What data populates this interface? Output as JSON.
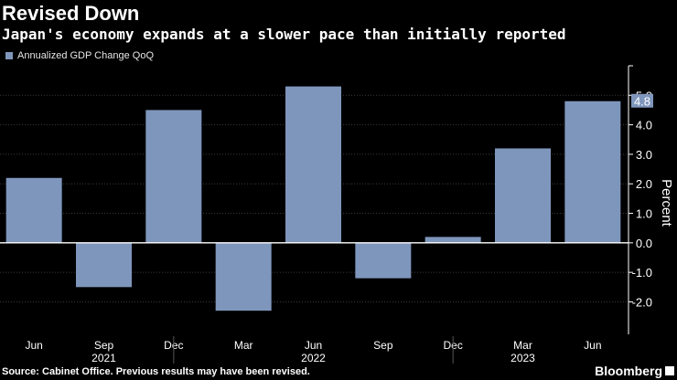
{
  "header": {
    "title": "Revised Down",
    "subtitle": "Japan's economy expands at a slower pace than initially reported"
  },
  "footer": {
    "source": "Source: Cabinet Office. Previous results may have been revised.",
    "brand": "Bloomberg"
  },
  "colors": {
    "bar": "#7f96bc",
    "background": "#000000",
    "grid": "#3a3a3a",
    "text": "#ffffff"
  },
  "chart_data": {
    "type": "bar",
    "title": "Revised Down",
    "subtitle": "Japan's economy expands at a slower pace than initially reported",
    "categories": [
      "Jun 2021",
      "Sep 2021",
      "Dec 2021",
      "Mar 2022",
      "Jun 2022",
      "Sep 2022",
      "Dec 2022",
      "Mar 2023",
      "Jun 2023"
    ],
    "x_tick_labels": [
      "Jun",
      "Sep",
      "Dec",
      "Mar",
      "Jun",
      "Sep",
      "Dec",
      "Mar",
      "Jun"
    ],
    "year_labels": [
      {
        "label": "2021",
        "index": 1
      },
      {
        "label": "2022",
        "index": 4
      },
      {
        "label": "2023",
        "index": 7
      }
    ],
    "series": [
      {
        "name": "Annualized GDP Change QoQ",
        "values": [
          2.2,
          -1.5,
          4.5,
          -2.3,
          5.3,
          -1.2,
          0.2,
          3.2,
          4.8
        ]
      }
    ],
    "ylabel": "Percent",
    "ylim": [
      -3.1,
      6.0
    ],
    "yticks": [
      -2.0,
      -1.0,
      0.0,
      1.0,
      2.0,
      3.0,
      4.0,
      5.0
    ],
    "ytick_labels": [
      "-2.0",
      "-1.0",
      "0.0",
      "1.0",
      "2.0",
      "3.0",
      "4.0",
      "5.0"
    ],
    "last_value_label": "4.8",
    "grid": true,
    "legend": "top-left"
  }
}
